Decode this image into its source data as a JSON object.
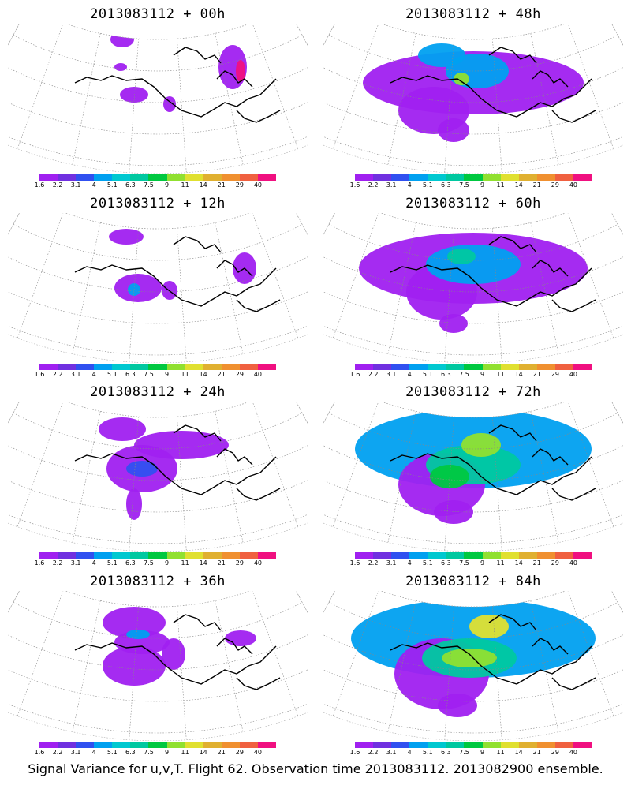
{
  "panels": [
    {
      "title": "2013083112 + 00h"
    },
    {
      "title": "2013083112 + 48h"
    },
    {
      "title": "2013083112 + 12h"
    },
    {
      "title": "2013083112 + 60h"
    },
    {
      "title": "2013083112 + 24h"
    },
    {
      "title": "2013083112 + 72h"
    },
    {
      "title": "2013083112 + 36h"
    },
    {
      "title": "2013083112 + 84h"
    }
  ],
  "colorbar": {
    "labels": [
      "1.6",
      "2.2",
      "3.1",
      "4",
      "5.1",
      "6.3",
      "7.5",
      "9",
      "11",
      "14",
      "21",
      "29",
      "40"
    ],
    "colors": [
      "#a020f0",
      "#7030e0",
      "#3050f0",
      "#00a0f0",
      "#00c8d0",
      "#00c8a0",
      "#00c840",
      "#90e030",
      "#e0e030",
      "#e0b030",
      "#f09030",
      "#f06040",
      "#f01080"
    ]
  },
  "caption": "Signal Variance for u,v,T. Flight 62. Observation time 2013083112. 2013082900 ensemble."
}
